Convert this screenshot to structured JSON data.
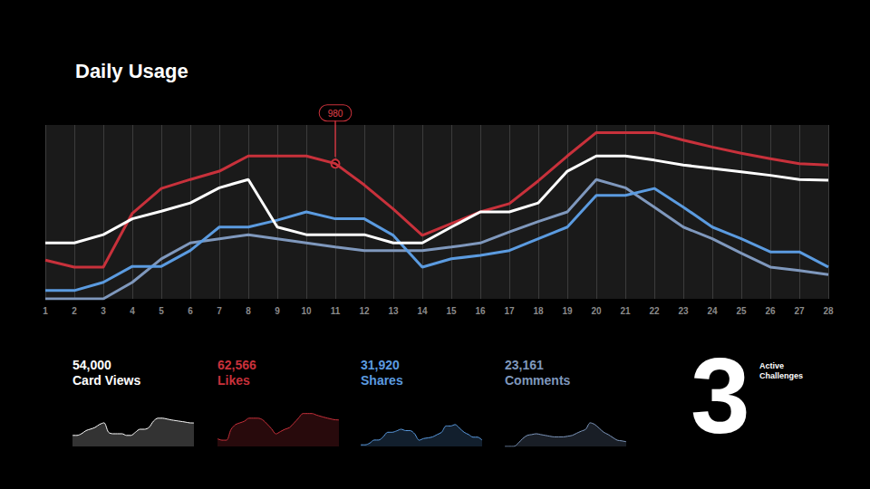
{
  "chart_data": {
    "type": "line",
    "title": "Daily Usage",
    "categories": [
      "1",
      "2",
      "3",
      "4",
      "5",
      "6",
      "7",
      "8",
      "9",
      "10",
      "11",
      "12",
      "13",
      "14",
      "15",
      "16",
      "17",
      "18",
      "19",
      "20",
      "21",
      "22",
      "23",
      "24",
      "25",
      "26",
      "27",
      "28"
    ],
    "ylim": [
      0,
      1260
    ],
    "tick_labels": "x",
    "grid": true,
    "series": [
      {
        "name": "Card Views",
        "color": "#ffffff",
        "total": {
          "value": 54000,
          "label": "54,000"
        },
        "values": [
          405,
          405,
          465,
          580,
          635,
          695,
          805,
          865,
          520,
          465,
          465,
          465,
          405,
          405,
          520,
          630,
          630,
          695,
          925,
          1035,
          1035,
          1005,
          970,
          945,
          920,
          895,
          865,
          860
        ]
      },
      {
        "name": "Likes",
        "color": "#c8313b",
        "total": {
          "value": 62566,
          "label": "62,566"
        },
        "values": [
          280,
          230,
          230,
          620,
          800,
          865,
          925,
          1035,
          1035,
          1035,
          980,
          825,
          650,
          460,
          545,
          630,
          690,
          855,
          1035,
          1205,
          1205,
          1205,
          1150,
          1100,
          1055,
          1015,
          980,
          970
        ]
      },
      {
        "name": "Shares",
        "color": "#5b9be0",
        "total": {
          "value": 31920,
          "label": "31,920"
        },
        "values": [
          60,
          60,
          120,
          235,
          235,
          350,
          520,
          520,
          570,
          630,
          580,
          580,
          460,
          230,
          290,
          315,
          350,
          435,
          520,
          750,
          750,
          800,
          665,
          520,
          435,
          340,
          340,
          230
        ]
      },
      {
        "name": "Comments",
        "color": "#7f98bd",
        "total": {
          "value": 23161,
          "label": "23,161"
        },
        "values": [
          0,
          0,
          0,
          120,
          290,
          405,
          435,
          465,
          435,
          405,
          375,
          350,
          350,
          350,
          375,
          405,
          485,
          560,
          630,
          865,
          805,
          665,
          520,
          435,
          330,
          230,
          205,
          175
        ]
      }
    ],
    "annotations": [
      {
        "series": "Likes",
        "x": "11",
        "y": 980,
        "text": "980"
      }
    ],
    "stat": {
      "value": 3,
      "label": "Active Challenges"
    }
  }
}
